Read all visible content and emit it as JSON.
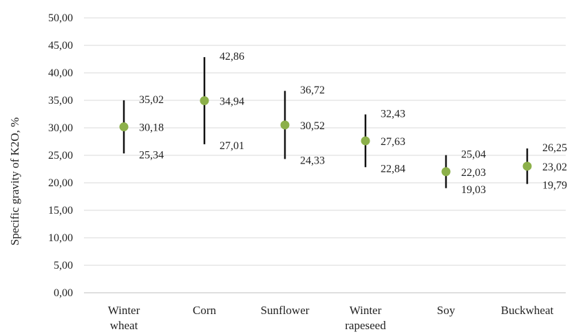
{
  "colors": {
    "point": "#8cb04a",
    "whisker": "#111111",
    "grid": "#d9d9d9"
  },
  "chart_data": {
    "type": "scatter",
    "ylabel": "Specific gravity of K2O, %",
    "ylim": [
      0,
      50
    ],
    "y_tick_step": 5,
    "y_tick_labels": [
      "0,00",
      "5,00",
      "10,00",
      "15,00",
      "20,00",
      "25,00",
      "30,00",
      "35,00",
      "40,00",
      "45,00",
      "50,00"
    ],
    "grid": true,
    "categories": [
      {
        "lines": [
          "Winter",
          "wheat"
        ]
      },
      {
        "lines": [
          "Corn"
        ]
      },
      {
        "lines": [
          "Sunflower"
        ]
      },
      {
        "lines": [
          "Winter",
          "rapeseed"
        ]
      },
      {
        "lines": [
          "Soy"
        ]
      },
      {
        "lines": [
          "Buckwheat"
        ]
      }
    ],
    "points": [
      {
        "mean": 30.18,
        "max": 35.02,
        "min": 25.34,
        "mean_label": "30,18",
        "max_label": "35,02",
        "min_label": "25,34"
      },
      {
        "mean": 34.94,
        "max": 42.86,
        "min": 27.01,
        "mean_label": "34,94",
        "max_label": "42,86",
        "min_label": "27,01"
      },
      {
        "mean": 30.52,
        "max": 36.72,
        "min": 24.33,
        "mean_label": "30,52",
        "max_label": "36,72",
        "min_label": "24,33"
      },
      {
        "mean": 27.63,
        "max": 32.43,
        "min": 22.84,
        "mean_label": "27,63",
        "max_label": "32,43",
        "min_label": "22,84"
      },
      {
        "mean": 22.03,
        "max": 25.04,
        "min": 19.03,
        "mean_label": "22,03",
        "max_label": "25,04",
        "min_label": "19,03"
      },
      {
        "mean": 23.02,
        "max": 26.25,
        "min": 19.79,
        "mean_label": "23,02",
        "max_label": "26,25",
        "min_label": "19,79"
      }
    ]
  }
}
